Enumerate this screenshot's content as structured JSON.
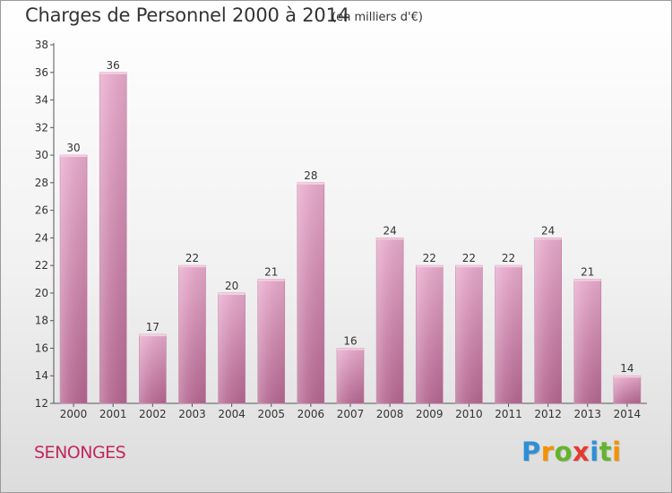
{
  "chart_data": {
    "type": "bar",
    "title": "Charges de Personnel 2000 à 2014",
    "subtitle": "(en milliers d'€)",
    "categories": [
      "2000",
      "2001",
      "2002",
      "2003",
      "2004",
      "2005",
      "2006",
      "2007",
      "2008",
      "2009",
      "2010",
      "2011",
      "2012",
      "2013",
      "2014"
    ],
    "values": [
      30,
      36,
      17,
      22,
      20,
      21,
      28,
      16,
      24,
      22,
      22,
      22,
      24,
      21,
      14
    ],
    "ylim": [
      12,
      38
    ],
    "yticks": [
      12,
      14,
      16,
      18,
      20,
      22,
      24,
      26,
      28,
      30,
      32,
      34,
      36,
      38
    ],
    "grid": false,
    "bar_color": "#d589b2"
  },
  "commune": "SENONGES",
  "logo": {
    "letters": [
      "P",
      "r",
      "o",
      "x",
      "i",
      "t",
      "i"
    ],
    "colors": [
      "#2f8fd6",
      "#f39200",
      "#64b32e",
      "#e53a2f",
      "#2f8fd6",
      "#64b32e",
      "#f39200"
    ]
  }
}
